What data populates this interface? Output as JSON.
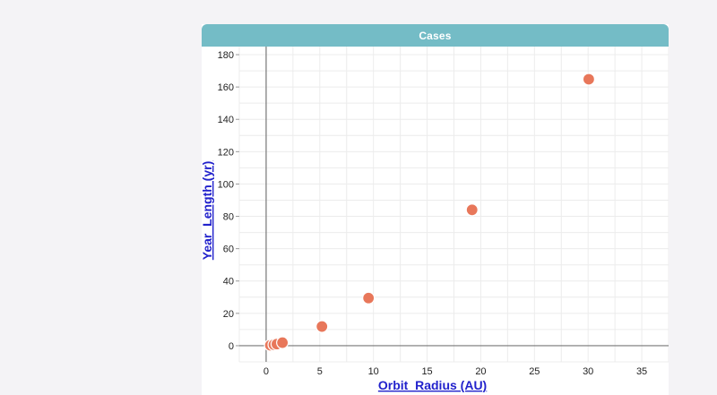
{
  "window": {
    "title": "Cases"
  },
  "chart_data": {
    "type": "scatter",
    "xlabel": "Orbit_Radius (AU)",
    "ylabel": "Year_Length (yr)",
    "xlim": [
      -2.5,
      37.5
    ],
    "ylim": [
      -10,
      185
    ],
    "xticks": [
      0,
      5,
      10,
      15,
      20,
      25,
      30,
      35
    ],
    "yticks": [
      0,
      20,
      40,
      60,
      80,
      100,
      120,
      140,
      160,
      180
    ],
    "grid": true,
    "series": [
      {
        "points": [
          {
            "x": 0.39,
            "y": 0.24
          },
          {
            "x": 0.72,
            "y": 0.62
          },
          {
            "x": 1.0,
            "y": 1.0
          },
          {
            "x": 1.52,
            "y": 1.88
          },
          {
            "x": 5.2,
            "y": 11.86
          },
          {
            "x": 9.54,
            "y": 29.46
          },
          {
            "x": 19.19,
            "y": 84.01
          },
          {
            "x": 30.06,
            "y": 164.8
          }
        ],
        "color": "#e8775a"
      }
    ],
    "colors": {
      "point": "#e8775a",
      "point_stroke": "#ffffff",
      "grid": "#ececec",
      "axis": "#777777",
      "label": "#2222cc",
      "title_bar": "#74bcc6"
    }
  }
}
